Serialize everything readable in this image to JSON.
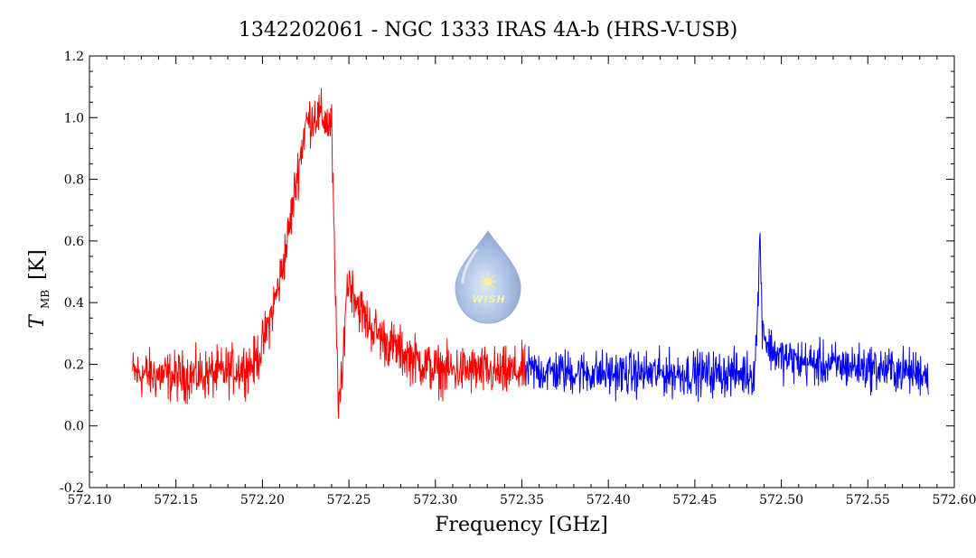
{
  "chart_data": {
    "type": "line",
    "title": "1342202061 - NGC 1333 IRAS 4A-b (HRS-V-USB)",
    "xlabel": "Frequency [GHz]",
    "ylabel_main": "T",
    "ylabel_sub": "MB",
    "ylabel_unit": "[K]",
    "xlim": [
      572.1,
      572.6
    ],
    "ylim": [
      -0.2,
      1.2
    ],
    "xticks": [
      "572.10",
      "572.15",
      "572.20",
      "572.25",
      "572.30",
      "572.35",
      "572.40",
      "572.45",
      "572.50",
      "572.55",
      "572.60"
    ],
    "yticks": [
      "-0.2",
      "0.0",
      "0.2",
      "0.4",
      "0.6",
      "0.8",
      "1.0",
      "1.2"
    ],
    "grid": false,
    "watermark_text": "WISH",
    "colors": {
      "series_red": "#ff0000",
      "series_blue": "#0000ff",
      "axis": "#000000"
    },
    "series": [
      {
        "color": "red",
        "x": [
          572.125,
          572.15,
          572.175,
          572.195,
          572.2,
          572.205,
          572.21,
          572.215,
          572.22,
          572.225,
          572.23,
          572.235,
          572.24,
          572.242,
          572.244,
          572.246,
          572.248,
          572.25,
          572.255,
          572.26,
          572.27,
          572.28,
          572.29,
          572.3,
          572.32,
          572.34,
          572.352
        ],
        "y": [
          0.17,
          0.16,
          0.17,
          0.2,
          0.26,
          0.36,
          0.47,
          0.62,
          0.81,
          0.98,
          1.01,
          1.0,
          0.97,
          0.45,
          0.08,
          0.12,
          0.4,
          0.48,
          0.4,
          0.34,
          0.28,
          0.24,
          0.21,
          0.18,
          0.18,
          0.17,
          0.18
        ],
        "noise": 0.05
      },
      {
        "color": "blue",
        "x": [
          572.352,
          572.4,
          572.45,
          572.48,
          572.484,
          572.486,
          572.4875,
          572.489,
          572.492,
          572.5,
          572.52,
          572.55,
          572.585
        ],
        "y": [
          0.18,
          0.17,
          0.17,
          0.17,
          0.17,
          0.3,
          0.62,
          0.34,
          0.26,
          0.22,
          0.2,
          0.19,
          0.17
        ],
        "noise": 0.045
      }
    ]
  }
}
